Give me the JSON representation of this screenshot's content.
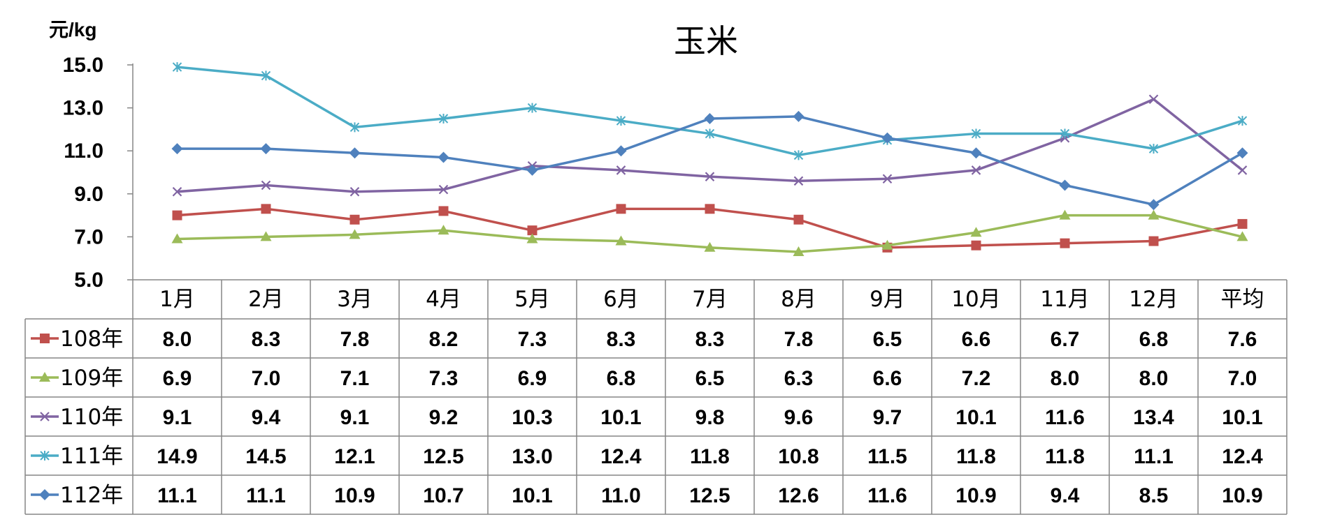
{
  "chart_data": {
    "type": "line",
    "title": "玉米",
    "unit": "元/kg",
    "ylim": [
      5.0,
      15.0
    ],
    "yticks": [
      "15.0",
      "13.0",
      "11.0",
      "9.0",
      "7.0",
      "5.0"
    ],
    "categories": [
      "1月",
      "2月",
      "3月",
      "4月",
      "5月",
      "6月",
      "7月",
      "8月",
      "9月",
      "10月",
      "11月",
      "12月",
      "平均"
    ],
    "series": [
      {
        "name": "108年",
        "color": "#c0504d",
        "marker": "square",
        "values": [
          8.0,
          8.3,
          7.8,
          8.2,
          7.3,
          8.3,
          8.3,
          7.8,
          6.5,
          6.6,
          6.7,
          6.8,
          7.6
        ],
        "labels": [
          "8.0",
          "8.3",
          "7.8",
          "8.2",
          "7.3",
          "8.3",
          "8.3",
          "7.8",
          "6.5",
          "6.6",
          "6.7",
          "6.8",
          "7.6"
        ]
      },
      {
        "name": "109年",
        "color": "#9bbb59",
        "marker": "triangle",
        "values": [
          6.9,
          7.0,
          7.1,
          7.3,
          6.9,
          6.8,
          6.5,
          6.3,
          6.6,
          7.2,
          8.0,
          8.0,
          7.0
        ],
        "labels": [
          "6.9",
          "7.0",
          "7.1",
          "7.3",
          "6.9",
          "6.8",
          "6.5",
          "6.3",
          "6.6",
          "7.2",
          "8.0",
          "8.0",
          "7.0"
        ]
      },
      {
        "name": "110年",
        "color": "#8064a2",
        "marker": "x",
        "values": [
          9.1,
          9.4,
          9.1,
          9.2,
          10.3,
          10.1,
          9.8,
          9.6,
          9.7,
          10.1,
          11.6,
          13.4,
          10.1
        ],
        "labels": [
          "9.1",
          "9.4",
          "9.1",
          "9.2",
          "10.3",
          "10.1",
          "9.8",
          "9.6",
          "9.7",
          "10.1",
          "11.6",
          "13.4",
          "10.1"
        ]
      },
      {
        "name": "111年",
        "color": "#4bacc6",
        "marker": "star",
        "values": [
          14.9,
          14.5,
          12.1,
          12.5,
          13.0,
          12.4,
          11.8,
          10.8,
          11.5,
          11.8,
          11.8,
          11.1,
          12.4
        ],
        "labels": [
          "14.9",
          "14.5",
          "12.1",
          "12.5",
          "13.0",
          "12.4",
          "11.8",
          "10.8",
          "11.5",
          "11.8",
          "11.8",
          "11.1",
          "12.4"
        ]
      },
      {
        "name": "112年",
        "color": "#4f81bd",
        "marker": "diamond",
        "values": [
          11.1,
          11.1,
          10.9,
          10.7,
          10.1,
          11.0,
          12.5,
          12.6,
          11.6,
          10.9,
          9.4,
          8.5,
          10.9
        ],
        "labels": [
          "11.1",
          "11.1",
          "10.9",
          "10.7",
          "10.1",
          "11.0",
          "12.5",
          "12.6",
          "11.6",
          "10.9",
          "9.4",
          "8.5",
          "10.9"
        ]
      }
    ]
  }
}
